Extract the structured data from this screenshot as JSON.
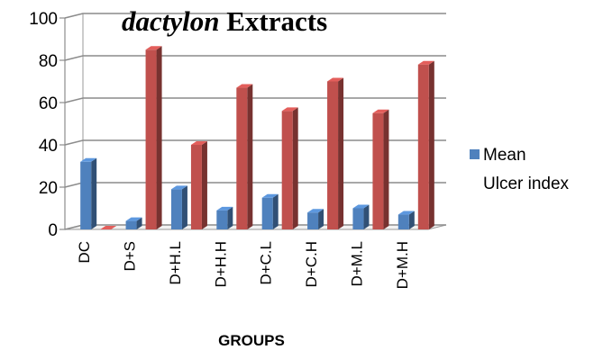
{
  "chart_data": {
    "type": "bar",
    "title": {
      "italic": "dactylon",
      "rest": " Extracts"
    },
    "xlabel": "GROUPS",
    "ylabel": "",
    "ylim": [
      0,
      100
    ],
    "yticks": [
      0,
      20,
      40,
      60,
      80,
      100
    ],
    "categories": [
      "DC",
      "D+S",
      "D+H.L",
      "D+H.H",
      "D+C.L",
      "D+C.H",
      "D+M.L",
      "D+M.H"
    ],
    "series": [
      {
        "values": [
          32,
          4,
          19,
          9,
          15,
          8,
          10,
          7
        ],
        "color": "#4F81BD"
      },
      {
        "values": [
          0,
          85,
          40,
          67,
          56,
          70,
          55,
          78
        ],
        "color": "#C0504D"
      }
    ],
    "legend": {
      "position": "right",
      "entries": [
        "Mean",
        "Ulcer index"
      ]
    },
    "grid": true
  }
}
